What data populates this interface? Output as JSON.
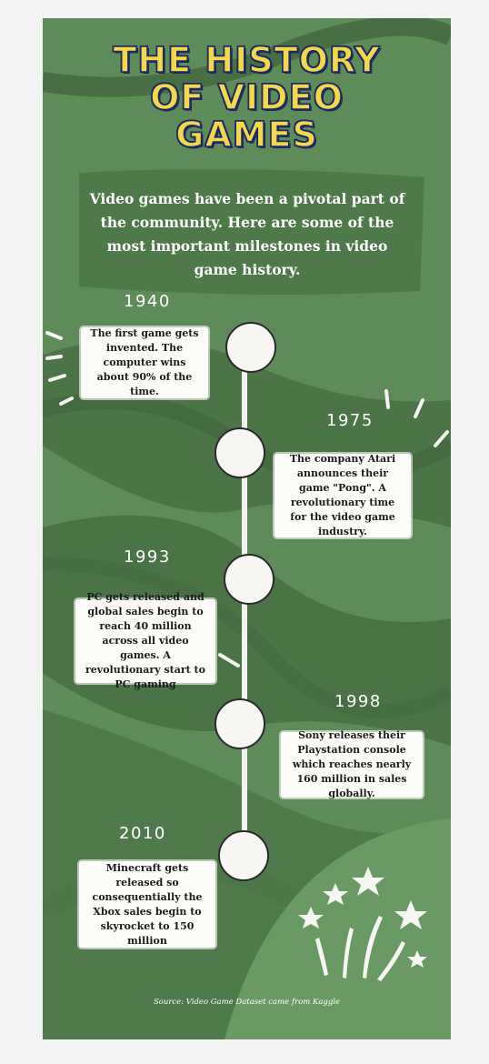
{
  "title_lines": [
    "THE HISTORY",
    "OF VIDEO",
    "GAMES"
  ],
  "intro": "Video games have been a pivotal part of the community. Here are some of the most important milestones in video game history.",
  "milestones": [
    {
      "year": "1940",
      "text": "The first game gets invented. The computer wins about 90% of the time."
    },
    {
      "year": "1975",
      "text": "The company Atari announces their game \"Pong\". A revolutionary time for the video game industry."
    },
    {
      "year": "1993",
      "text": "PC gets released and global sales begin to reach 40 million across all video games. A revolutionary start to PC gaming"
    },
    {
      "year": "1998",
      "text": "Sony releases their Playstation console which reaches nearly 160 million in sales globally."
    },
    {
      "year": "2010",
      "text": "Minecraft gets released so consequentially the Xbox sales begin to skyrocket to 150 million"
    }
  ],
  "source": "Source: Video Game Dataset came from Kaggle",
  "colors": {
    "background": "#5e8c58",
    "dark_band": "#4a7446",
    "title_fill": "#f3d84a",
    "title_outline": "#1e2a66",
    "card": "#fdfcf8"
  },
  "icons": [
    "star-icon",
    "burst-lines-icon"
  ]
}
